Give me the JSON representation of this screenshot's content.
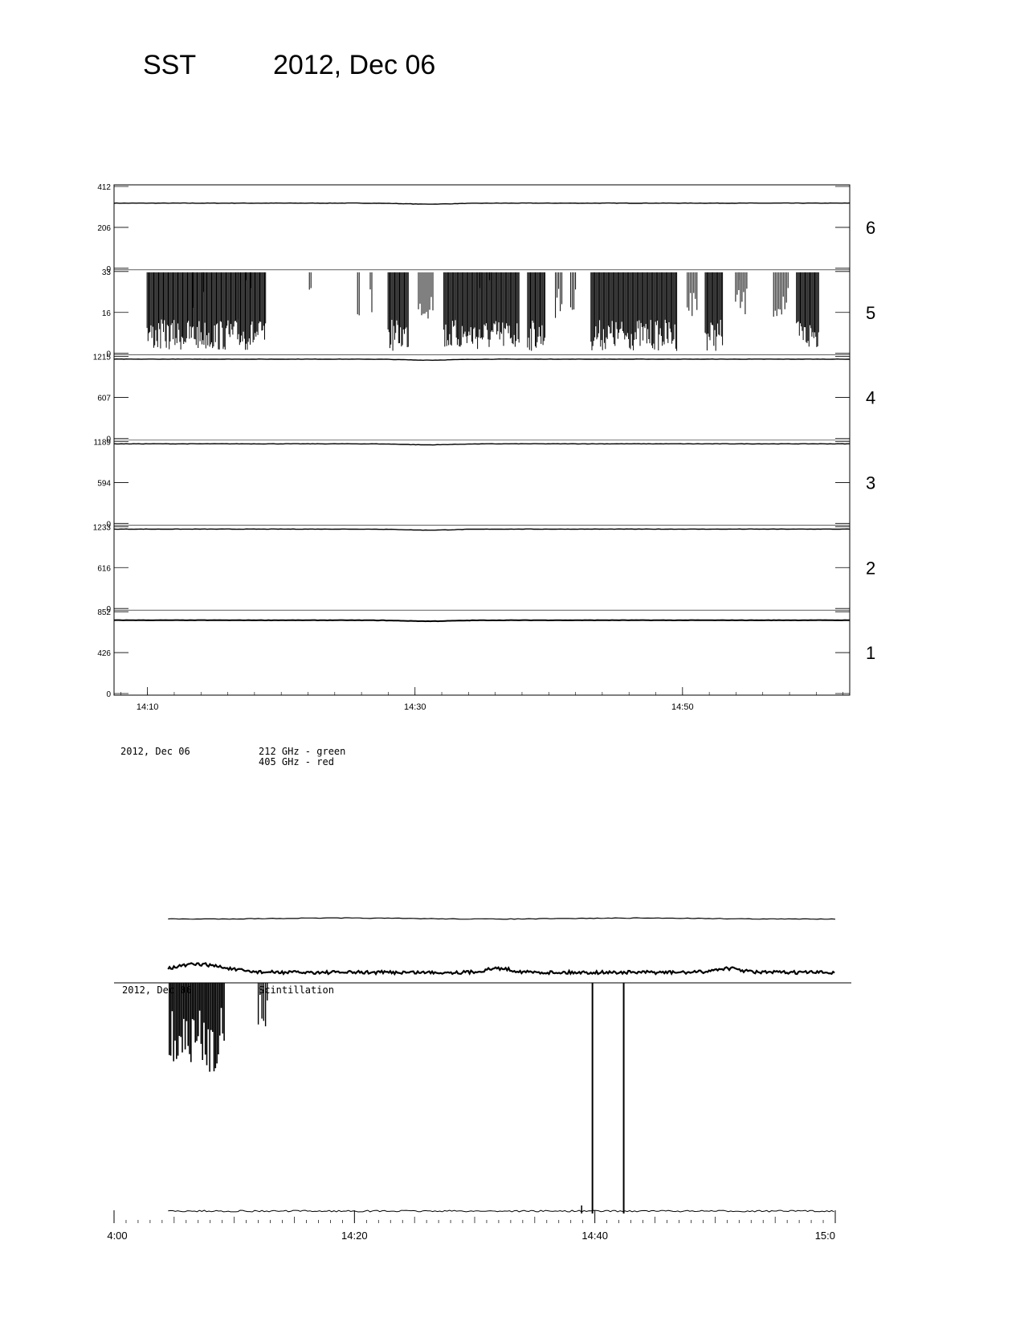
{
  "header": {
    "instrument": "SST",
    "date": "2012, Dec 06"
  },
  "chart_data": [
    {
      "type": "line",
      "title": "",
      "x_range": [
        "14:07",
        "14:55"
      ],
      "x_ticks": [
        "14:10",
        "14:30",
        "14:50"
      ],
      "panels": [
        {
          "label": "6",
          "yticks": [
            "412",
            "206",
            "0"
          ],
          "ymax": 412,
          "level": 336,
          "kind": "line"
        },
        {
          "label": "5",
          "yticks": [
            "33",
            "16",
            "0"
          ],
          "ymax": 33,
          "kind": "bursts",
          "bursts": [
            [
              14.13,
              14.6
            ],
            [
              14.77,
              14.78
            ],
            [
              14.96,
              14.97
            ],
            [
              15.01,
              15.02
            ],
            [
              15.08,
              15.16
            ],
            [
              15.2,
              15.26
            ],
            [
              15.3,
              15.6
            ],
            [
              15.63,
              15.7
            ],
            [
              15.74,
              15.77
            ],
            [
              15.8,
              15.82
            ],
            [
              15.88,
              16.22
            ],
            [
              16.26,
              16.3
            ],
            [
              16.33,
              16.4
            ],
            [
              16.45,
              16.5
            ],
            [
              16.6,
              16.66
            ],
            [
              16.69,
              16.78
            ]
          ]
        },
        {
          "label": "4",
          "yticks": [
            "1215",
            "607",
            "0"
          ],
          "ymax": 1215,
          "level": 1200,
          "kind": "line"
        },
        {
          "label": "3",
          "yticks": [
            "1189",
            "594",
            "0"
          ],
          "ymax": 1189,
          "level": 1180,
          "kind": "line"
        },
        {
          "label": "2",
          "yticks": [
            "1233",
            "616",
            "0"
          ],
          "ymax": 1233,
          "level": 1220,
          "kind": "line"
        },
        {
          "label": "1",
          "yticks": [
            "852",
            "426",
            "0"
          ],
          "ymax": 852,
          "level": 780,
          "kind": "line"
        }
      ]
    },
    {
      "type": "line",
      "title": "",
      "legend": [
        "212 GHz - green",
        "405 GHz - red"
      ],
      "annotation": "2012, Dec 06",
      "annotation2": "2012, Dec 06",
      "annotation2_suffix": "Scintillation",
      "x_ticks": [
        "4:00",
        "14:20",
        "14:40",
        "15:0"
      ],
      "x_range": [
        "14:00",
        "15:00"
      ]
    }
  ]
}
